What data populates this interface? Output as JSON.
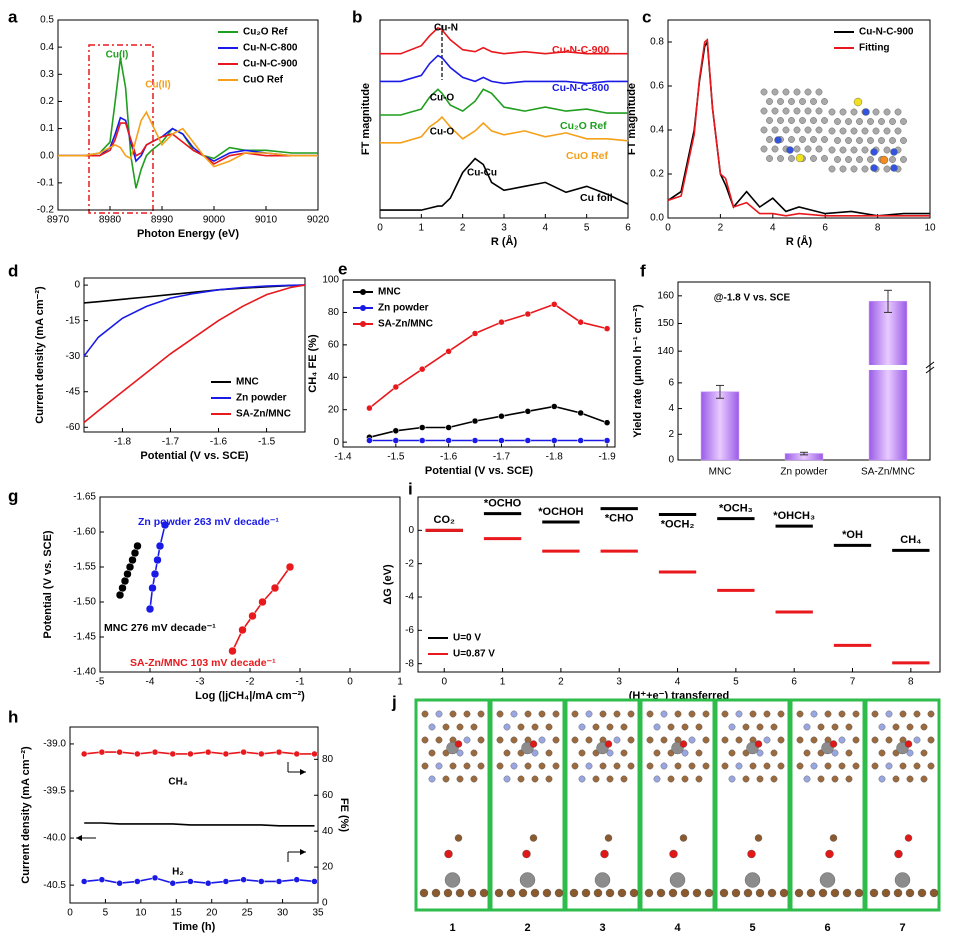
{
  "chart_data": [
    {
      "panel": "a",
      "type": "line",
      "xlabel": "Photon Energy (eV)",
      "x": [
        8970,
        8975,
        8978,
        8980,
        8981,
        8982,
        8983,
        8984,
        8985,
        8986,
        8987,
        8988,
        8990,
        8992,
        8994,
        8996,
        8998,
        9000,
        9003,
        9006,
        9010,
        9015,
        9020
      ],
      "xlim": [
        8970,
        9020
      ],
      "xticks": [
        8970,
        8980,
        8990,
        9000,
        9010,
        9020
      ],
      "ylim": [
        -0.2,
        0.5
      ],
      "yticks": [
        -0.2,
        -0.1,
        {
          "value": 0,
          "label": "0.0"
        },
        0.1,
        0.2,
        0.3,
        0.4,
        0.5
      ],
      "legend": "upper right",
      "annotations": [
        "Cu(I)",
        "Cu(II)"
      ],
      "series": [
        {
          "name": "Cu₂O Ref",
          "color": "#1f9e1f",
          "values": [
            0,
            0,
            0.01,
            0.05,
            0.2,
            0.36,
            0.25,
            0,
            -0.12,
            -0.05,
            0,
            0.02,
            0.05,
            0.1,
            0.08,
            0.02,
            0,
            -0.01,
            0.03,
            0.02,
            0.02,
            0.01,
            0.01
          ]
        },
        {
          "name": "Cu-N-C-800",
          "color": "#1a1ae6",
          "values": [
            0,
            0,
            0,
            0.03,
            0.08,
            0.14,
            0.13,
            0.05,
            -0.02,
            0,
            0.04,
            0.05,
            0.07,
            0.1,
            0.08,
            0.03,
            0,
            -0.02,
            0.01,
            0.02,
            0.01,
            0,
            0
          ]
        },
        {
          "name": "Cu-N-C-900",
          "color": "#e8181d",
          "values": [
            0,
            0,
            0,
            0.02,
            0.06,
            0.12,
            0.12,
            0.06,
            0,
            0.01,
            0.04,
            0.05,
            0.07,
            0.08,
            0.05,
            0.02,
            0,
            -0.03,
            0,
            0.01,
            0,
            0,
            0
          ]
        },
        {
          "name": "CuO Ref",
          "color": "#f5a01a",
          "values": [
            0,
            0,
            0.01,
            0.03,
            0.04,
            0.03,
            0,
            -0.01,
            0.06,
            0.13,
            0.16,
            0.12,
            0.04,
            0.08,
            0.1,
            0.05,
            0,
            -0.04,
            -0.02,
            0.01,
            0.01,
            0,
            0
          ]
        }
      ]
    },
    {
      "panel": "b",
      "type": "line",
      "xlabel": "R (Å)",
      "ylabel": "FT magnitude",
      "x": [
        0,
        0.5,
        1,
        1.2,
        1.4,
        1.5,
        1.7,
        2,
        2.3,
        2.5,
        2.7,
        3,
        3.5,
        4,
        4.5,
        5,
        5.5,
        6
      ],
      "xlim": [
        0,
        6
      ],
      "xticks": [
        0,
        1,
        2,
        3,
        4,
        5,
        6
      ],
      "ylim": [
        0,
        10
      ],
      "legend": "inline",
      "annotations": [
        "Cu-N",
        "Cu-O",
        "Cu-O",
        "Cu-Cu"
      ],
      "series": [
        {
          "name": "Cu-N-C-900",
          "color": "#e8181d",
          "values": [
            8.3,
            8.3,
            8.7,
            9.2,
            9.6,
            9.5,
            9.0,
            8.5,
            8.4,
            8.6,
            8.4,
            8.3,
            8.4,
            8.3,
            8.4,
            8.3,
            8.3,
            8.3
          ]
        },
        {
          "name": "Cu-N-C-800",
          "color": "#1a1ae6",
          "values": [
            6.9,
            6.9,
            7.2,
            7.8,
            8.2,
            8.1,
            7.6,
            7.1,
            6.9,
            7.1,
            6.9,
            6.8,
            6.9,
            6.9,
            6.9,
            6.8,
            6.9,
            6.9
          ]
        },
        {
          "name": "Cu₂O Ref",
          "color": "#1f9e1f",
          "values": [
            5.2,
            5.2,
            5.5,
            6.1,
            6.5,
            6.3,
            5.7,
            5.4,
            5.9,
            6.5,
            6.3,
            5.6,
            5.4,
            5.6,
            5.4,
            5.5,
            5.3,
            5.3
          ]
        },
        {
          "name": "CuO Ref",
          "color": "#f5a01a",
          "values": [
            3.8,
            3.8,
            4.1,
            4.6,
            4.9,
            5.1,
            4.6,
            4.0,
            4.4,
            4.8,
            4.4,
            4.2,
            4.4,
            4.1,
            4.3,
            4.0,
            4.0,
            3.9
          ]
        },
        {
          "name": "Cu foil",
          "color": "#000000",
          "values": [
            0.4,
            0.4,
            0.4,
            0.5,
            0.6,
            0.6,
            1.0,
            2.3,
            3.0,
            2.7,
            1.8,
            1.4,
            1.6,
            1.8,
            1.3,
            1.6,
            1.2,
            0.7
          ]
        }
      ]
    },
    {
      "panel": "c",
      "type": "line",
      "xlabel": "R (Å)",
      "ylabel": "FT magnitude",
      "x": [
        0,
        0.5,
        1,
        1.2,
        1.4,
        1.5,
        1.7,
        2,
        2.2,
        2.5,
        3,
        3.5,
        4,
        4.5,
        5,
        6,
        7,
        8,
        9,
        10
      ],
      "xlim": [
        0,
        10
      ],
      "xticks": [
        0,
        2,
        4,
        6,
        8,
        10
      ],
      "ylim": [
        0,
        0.9
      ],
      "yticks": [
        {
          "value": 0,
          "label": "0.0"
        },
        0.2,
        0.4,
        0.6,
        0.8
      ],
      "legend": "upper right",
      "series": [
        {
          "name": "Cu-N-C-900",
          "color": "#000000",
          "values": [
            0.08,
            0.12,
            0.4,
            0.62,
            0.78,
            0.8,
            0.5,
            0.2,
            0.15,
            0.05,
            0.12,
            0.05,
            0.09,
            0.03,
            0.05,
            0.02,
            0.03,
            0.01,
            0.02,
            0.02
          ]
        },
        {
          "name": "Fitting",
          "color": "#e8181d",
          "values": [
            0.08,
            0.1,
            0.38,
            0.63,
            0.8,
            0.81,
            0.5,
            0.2,
            0.18,
            0.05,
            0.07,
            0.02,
            0.02,
            0.01,
            0.02,
            0.01,
            0.01,
            0.01,
            0.01,
            0.01
          ]
        }
      ]
    },
    {
      "panel": "d",
      "type": "line",
      "xlabel": "Potential (V vs. SCE)",
      "ylabel": "Current density (mA cm⁻²)",
      "x": [
        -1.88,
        -1.85,
        -1.8,
        -1.75,
        -1.7,
        -1.65,
        -1.6,
        -1.55,
        -1.5,
        -1.45,
        -1.42
      ],
      "xlim": [
        -1.88,
        -1.42
      ],
      "xticks": [
        -1.8,
        -1.7,
        -1.6,
        -1.5
      ],
      "ylim": [
        -62,
        3
      ],
      "yticks": [
        0,
        -15,
        -30,
        -45,
        -60
      ],
      "legend": "lower right",
      "series": [
        {
          "name": "MNC",
          "color": "#000000",
          "values": [
            -7.5,
            -7,
            -6,
            -5,
            -4,
            -3,
            -2,
            -1.3,
            -0.7,
            -0.2,
            0
          ]
        },
        {
          "name": "Zn powder",
          "color": "#1a1ae6",
          "values": [
            -30,
            -22,
            -14,
            -9,
            -5.5,
            -3.5,
            -2,
            -1,
            -0.4,
            -0.1,
            0
          ]
        },
        {
          "name": "SA-Zn/MNC",
          "color": "#e8181d",
          "values": [
            -58,
            -53,
            -45,
            -37,
            -29,
            -22,
            -15,
            -9,
            -4,
            -1,
            0
          ]
        }
      ]
    },
    {
      "panel": "e",
      "type": "line",
      "xlabel": "Potential (V vs. SCE)",
      "ylabel": "CH₄ FE (%)",
      "x": [
        -1.45,
        -1.5,
        -1.55,
        -1.6,
        -1.65,
        -1.7,
        -1.75,
        -1.8,
        -1.85,
        -1.9
      ],
      "xlim": [
        -1.4,
        -1.915
      ],
      "xticks": [
        -1.4,
        -1.5,
        -1.6,
        -1.7,
        -1.8,
        -1.9
      ],
      "ylim": [
        -3,
        100
      ],
      "yticks": [
        0,
        20,
        40,
        60,
        80,
        100
      ],
      "legend": "upper left",
      "series": [
        {
          "name": "MNC",
          "color": "#000000",
          "markers": true,
          "values": [
            3,
            7,
            9,
            9,
            13,
            16,
            19,
            22,
            18,
            12
          ]
        },
        {
          "name": "Zn powder",
          "color": "#1a1ae6",
          "markers": true,
          "values": [
            1,
            1,
            1,
            1,
            1,
            1,
            1,
            1,
            1,
            1
          ]
        },
        {
          "name": "SA-Zn/MNC",
          "color": "#e8181d",
          "markers": true,
          "values": [
            21,
            34,
            45,
            56,
            67,
            74,
            79,
            85,
            74,
            70
          ]
        }
      ]
    },
    {
      "panel": "f",
      "type": "bar",
      "ylabel": "Yield rate (μmol h⁻¹ cm⁻²)",
      "categories": [
        "MNC",
        "Zn powder",
        "SA-Zn/MNC"
      ],
      "values": [
        5.3,
        0.5,
        158
      ],
      "errors": [
        0.5,
        0.1,
        4
      ],
      "color": "#c58cf5",
      "ylim": [
        0,
        165
      ],
      "ybreak": [
        7,
        135
      ],
      "yticks": [
        0,
        2,
        4,
        6,
        140,
        150,
        160
      ],
      "annotations": [
        "@-1.8 V vs. SCE"
      ]
    },
    {
      "panel": "g",
      "type": "scatter",
      "xlabel": "Log (|jCH₄|/mA cm⁻²)",
      "ylabel": "Potential (V vs. SCE)",
      "xlim": [
        -5,
        1
      ],
      "xticks": [
        -5,
        -4,
        -3,
        -2,
        -1,
        0,
        1
      ],
      "ylim": [
        -1.4,
        -1.65
      ],
      "yticks": [
        -1.65,
        {
          "value": -1.6,
          "label": "-1.60"
        },
        -1.55,
        {
          "value": -1.5,
          "label": "-1.50"
        },
        -1.45,
        {
          "value": -1.4,
          "label": "-1.40"
        }
      ],
      "legend": "inline",
      "series": [
        {
          "name": "Zn powder 263 mV decade⁻¹",
          "color": "#1a1ae6",
          "x": [
            -4.0,
            -3.95,
            -3.9,
            -3.85,
            -3.8,
            -3.7
          ],
          "values": [
            -1.49,
            -1.52,
            -1.54,
            -1.56,
            -1.58,
            -1.61
          ]
        },
        {
          "name": "MNC 276 mV decade⁻¹",
          "color": "#000000",
          "x": [
            -4.6,
            -4.55,
            -4.5,
            -4.45,
            -4.4,
            -4.35,
            -4.3,
            -4.25
          ],
          "values": [
            -1.51,
            -1.52,
            -1.53,
            -1.54,
            -1.55,
            -1.56,
            -1.57,
            -1.58
          ]
        },
        {
          "name": "SA-Zn/MNC 103 mV decade⁻¹",
          "color": "#e8181d",
          "x": [
            -2.35,
            -2.15,
            -1.95,
            -1.75,
            -1.5,
            -1.2
          ],
          "values": [
            -1.43,
            -1.46,
            -1.48,
            -1.5,
            -1.52,
            -1.55
          ]
        }
      ]
    },
    {
      "panel": "i",
      "type": "level",
      "xlabel": "(H⁺+e⁻) transferred",
      "ylabel": "ΔG (eV)",
      "categories": [
        "CO₂",
        "*OCHO",
        "*OCHOH",
        "*CHO",
        "*OCH₂",
        "*OCH₃",
        "*OHCH₃",
        "*OH",
        "CH₄"
      ],
      "xlim": [
        -0.45,
        8.5
      ],
      "xticks": [
        0,
        1,
        2,
        3,
        4,
        5,
        6,
        7,
        8
      ],
      "ylim": [
        -8.5,
        2
      ],
      "yticks": [
        0,
        -2,
        -4,
        -6,
        -8
      ],
      "legend": "lower left",
      "series": [
        {
          "name": "U=0 V",
          "color": "#000000",
          "values": [
            0,
            1.0,
            0.5,
            1.3,
            0.95,
            0.7,
            0.25,
            -0.9,
            -1.2
          ]
        },
        {
          "name": "U=0.87 V",
          "color": "#e8181d",
          "values": [
            0,
            -0.5,
            -1.25,
            -1.25,
            -2.5,
            -3.6,
            -4.9,
            -6.9,
            -7.95
          ]
        }
      ]
    },
    {
      "panel": "h",
      "type": "line",
      "xlabel": "Time (h)",
      "ylabel": "Current density (mA cm⁻²)",
      "y2label": "FE (%)",
      "x": [
        2,
        4.5,
        7,
        9.5,
        12,
        14.5,
        17,
        19.5,
        22,
        24.5,
        27,
        29.5,
        32,
        34.5
      ],
      "xlim": [
        0,
        35
      ],
      "xticks": [
        0,
        5,
        10,
        15,
        20,
        25,
        30,
        35
      ],
      "ylim": [
        -40.69,
        -38.82
      ],
      "yticks": [
        {
          "value": -39,
          "label": "-39.0"
        },
        -39.5,
        {
          "value": -40,
          "label": "-40.0"
        },
        -40.5
      ],
      "y2lim": [
        0,
        98
      ],
      "y2ticks": [
        0,
        20,
        40,
        60,
        80
      ],
      "annotations": [
        "CH₄",
        "H₂"
      ],
      "series": [
        {
          "color": "#000000",
          "values": [
            -39.84,
            -39.84,
            -39.85,
            -39.85,
            -39.85,
            -39.85,
            -39.86,
            -39.86,
            -39.86,
            -39.86,
            -39.86,
            -39.87,
            -39.87,
            -39.87
          ]
        },
        {
          "color": "#e8181d",
          "axis": "y2",
          "markers": true,
          "values": [
            83,
            84,
            84,
            83,
            84,
            83,
            83,
            84,
            83,
            84,
            83,
            84,
            83,
            83
          ]
        },
        {
          "color": "#1a1ae6",
          "axis": "y2",
          "markers": true,
          "values": [
            12,
            13,
            11,
            12,
            14,
            11,
            12,
            11,
            12,
            13,
            12,
            12,
            13,
            12
          ]
        }
      ]
    }
  ],
  "panel_j": {
    "panel": "j",
    "labels": [
      "1",
      "2",
      "3",
      "4",
      "5",
      "6",
      "7"
    ]
  }
}
